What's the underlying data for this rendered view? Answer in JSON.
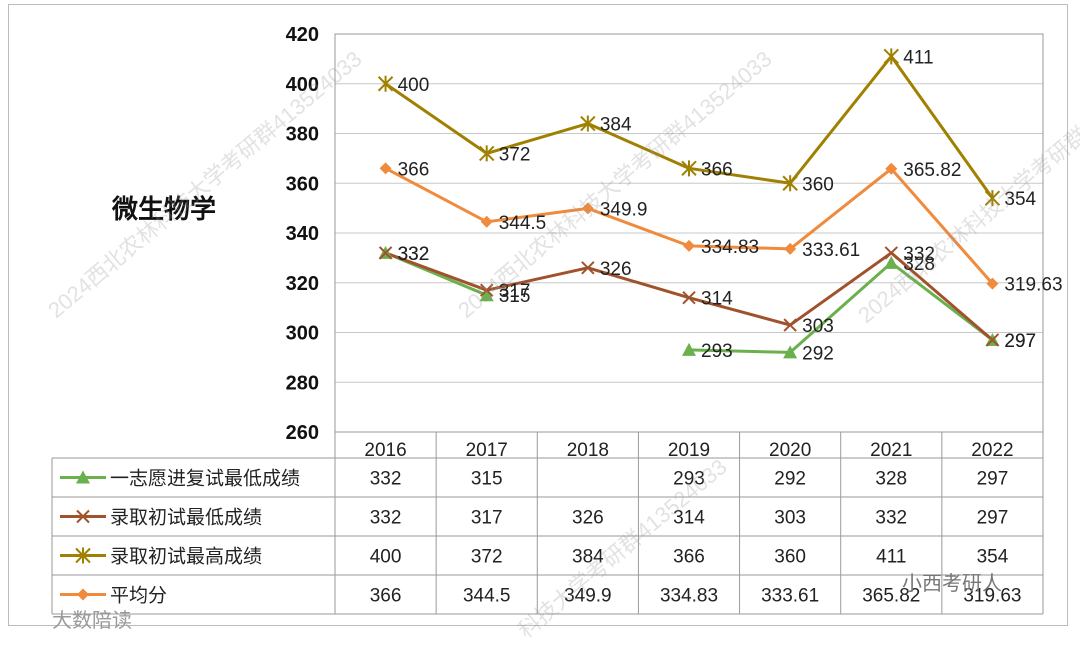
{
  "chart_data": {
    "type": "line",
    "title": "微生物学",
    "categories": [
      "2016",
      "2017",
      "2018",
      "2019",
      "2020",
      "2021",
      "2022"
    ],
    "ylim": [
      260,
      420
    ],
    "yticks": [
      260,
      280,
      300,
      320,
      340,
      360,
      380,
      400,
      420
    ],
    "grid": true,
    "legend": "table-bottom",
    "series": [
      {
        "name": "一志愿进复试最低成绩",
        "color": "#6ab04c",
        "marker": "triangle",
        "values": [
          332,
          315,
          null,
          293,
          292,
          328,
          297
        ],
        "labels": [
          "332",
          "315",
          "",
          "293",
          "292",
          "328",
          "297"
        ]
      },
      {
        "name": "录取初试最低成绩",
        "color": "#a0522d",
        "marker": "x",
        "values": [
          332,
          317,
          326,
          314,
          303,
          332,
          297
        ],
        "labels": [
          "332",
          "317",
          "326",
          "314",
          "303",
          "332",
          "297"
        ]
      },
      {
        "name": "录取初试最高成绩",
        "color": "#a08000",
        "marker": "star",
        "values": [
          400,
          372,
          384,
          366,
          360,
          411,
          354
        ],
        "labels": [
          "400",
          "372",
          "384",
          "366",
          "360",
          "411",
          "354"
        ]
      },
      {
        "name": "平均分",
        "color": "#f08a3c",
        "marker": "diamond",
        "values": [
          366,
          344.5,
          349.9,
          334.83,
          333.61,
          365.82,
          319.63
        ],
        "labels": [
          "366",
          "344.5",
          "349.9",
          "334.83",
          "333.61",
          "365.82",
          "319.63"
        ]
      }
    ]
  },
  "watermarks": [
    "2024西北农林科技大学考研群413524033",
    "2024西北农林科技大学考研群413524033",
    "2024西北农林科技大学考研群413524033",
    "科技大学考研群413524033"
  ],
  "corner_left": "大数陪读",
  "corner_right": "小西考研人"
}
